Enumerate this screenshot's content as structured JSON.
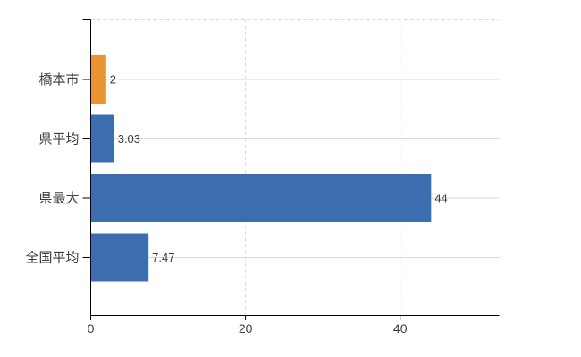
{
  "chart_data": {
    "type": "bar",
    "orientation": "horizontal",
    "title": "",
    "xlabel": "",
    "ylabel": "",
    "categories": [
      "橋本市",
      "県平均",
      "県最大",
      "全国平均"
    ],
    "values": [
      2,
      3.03,
      44,
      7.47
    ],
    "value_labels": [
      "2",
      "3.03",
      "44",
      "7.47"
    ],
    "bar_colors": [
      "#EC9333",
      "#3C6EAF",
      "#3C6EAF",
      "#3C6EAF"
    ],
    "xlim": [
      0,
      52.8
    ],
    "xticks": [
      0,
      20,
      40
    ],
    "xtick_labels": [
      "0",
      "20",
      "40"
    ],
    "grid": {
      "horizontal": "solid",
      "vertical": "dashed",
      "top_border": "dashed"
    },
    "legend_position": "none"
  },
  "colors": {
    "highlight_bar": "#EC9333",
    "default_bar": "#3C6EAF",
    "axis_line": "#000000",
    "grid_horizontal": "#D6DDD6",
    "grid_vertical": "#D9D9D9",
    "label_text": "#3D3D3D",
    "background": "#FFFFFF"
  }
}
